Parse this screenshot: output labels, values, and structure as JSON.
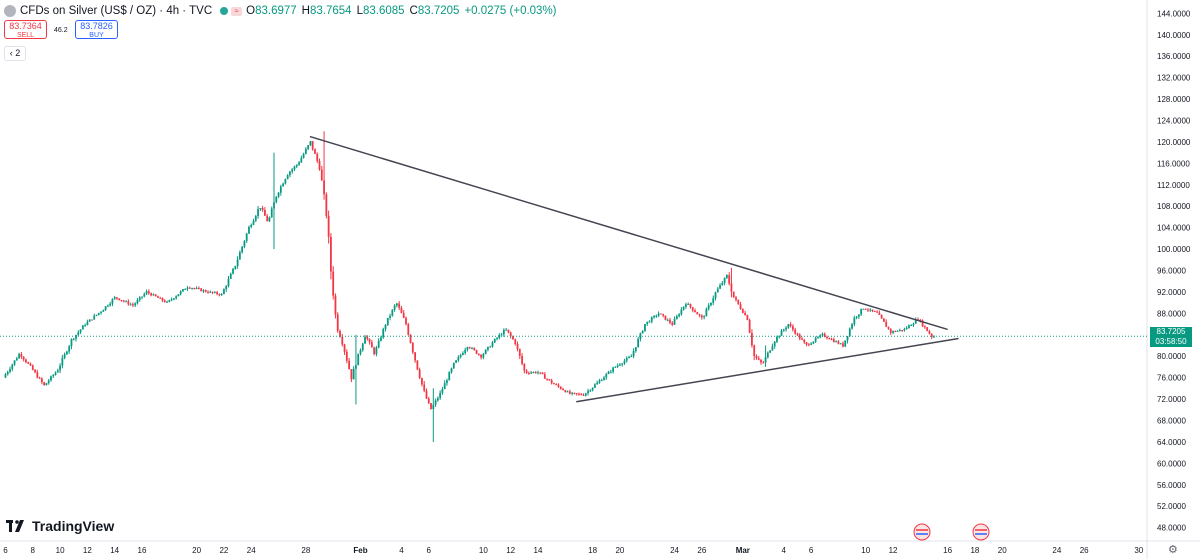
{
  "header": {
    "title": "CFDs on Silver (US$ / OZ) · 4h · TVC",
    "open_label": "O",
    "open": "83.6977",
    "high_label": "H",
    "high": "83.7654",
    "low_label": "L",
    "low": "83.6085",
    "close_label": "C",
    "close": "83.7205",
    "change": "+0.0275 (+0.03%)",
    "mini_button": "≈"
  },
  "trade": {
    "sell_price": "83.7364",
    "sell_label": "SELL",
    "buy_price": "83.7826",
    "buy_label": "BUY",
    "spread": "46.2"
  },
  "indicators_toggle": "2",
  "logo": "TradingView",
  "price_tag": {
    "price": "83.7205",
    "countdown": "03:58:50"
  },
  "colors": {
    "up": "#089981",
    "down": "#f23645",
    "trendline": "#434651",
    "axis_text": "#131722"
  },
  "chart_data": {
    "type": "candlestick",
    "title": "CFDs on Silver (US$ / OZ) · 4h · TVC",
    "y_ticks": [
      144,
      140,
      136,
      132,
      128,
      124,
      120,
      116,
      112,
      108,
      104,
      100,
      96,
      92,
      88,
      84,
      80,
      76,
      72,
      68,
      64,
      60,
      56,
      52,
      48
    ],
    "y_range": [
      45.5,
      146.5
    ],
    "x_ticks": [
      {
        "label": "6",
        "day": 6
      },
      {
        "label": "8",
        "day": 8
      },
      {
        "label": "10",
        "day": 10
      },
      {
        "label": "12",
        "day": 12
      },
      {
        "label": "14",
        "day": 14
      },
      {
        "label": "16",
        "day": 16
      },
      {
        "label": "20",
        "day": 20
      },
      {
        "label": "22",
        "day": 22
      },
      {
        "label": "24",
        "day": 24
      },
      {
        "label": "28",
        "day": 28
      },
      {
        "label": "Feb",
        "day": 32
      },
      {
        "label": "4",
        "day": 35
      },
      {
        "label": "6",
        "day": 37
      },
      {
        "label": "10",
        "day": 41
      },
      {
        "label": "12",
        "day": 43
      },
      {
        "label": "14",
        "day": 45
      },
      {
        "label": "18",
        "day": 49
      },
      {
        "label": "20",
        "day": 51
      },
      {
        "label": "24",
        "day": 55
      },
      {
        "label": "26",
        "day": 57
      },
      {
        "label": "Mar",
        "day": 60
      },
      {
        "label": "4",
        "day": 63
      },
      {
        "label": "6",
        "day": 65
      },
      {
        "label": "10",
        "day": 69
      },
      {
        "label": "12",
        "day": 71
      },
      {
        "label": "16",
        "day": 75
      },
      {
        "label": "18",
        "day": 77
      },
      {
        "label": "20",
        "day": 79
      },
      {
        "label": "24",
        "day": 83
      },
      {
        "label": "26",
        "day": 85
      },
      {
        "label": "30",
        "day": 89
      }
    ],
    "x_range": [
      5.6,
      89.6
    ],
    "waypoints": [
      [
        6.0,
        76.0
      ],
      [
        7.2,
        80.5
      ],
      [
        8.0,
        78.0
      ],
      [
        9.0,
        74.5
      ],
      [
        10.0,
        77.5
      ],
      [
        11.0,
        83.0
      ],
      [
        12.0,
        86.0
      ],
      [
        13.2,
        88.5
      ],
      [
        14.2,
        91.0
      ],
      [
        15.5,
        89.5
      ],
      [
        16.5,
        92.0
      ],
      [
        18.0,
        90.0
      ],
      [
        19.5,
        93.0
      ],
      [
        21.0,
        92.0
      ],
      [
        22.0,
        91.5
      ],
      [
        23.0,
        97.0
      ],
      [
        24.0,
        104.0
      ],
      [
        24.8,
        108.0
      ],
      [
        25.4,
        105.0
      ],
      [
        26.0,
        110.0
      ],
      [
        26.8,
        114.0
      ],
      [
        27.6,
        116.0
      ],
      [
        28.5,
        120.0
      ],
      [
        29.2,
        115.0
      ],
      [
        29.7,
        106.0
      ],
      [
        30.0,
        96.0
      ],
      [
        30.4,
        86.0
      ],
      [
        30.9,
        82.0
      ],
      [
        31.5,
        76.0
      ],
      [
        32.5,
        84.0
      ],
      [
        33.2,
        80.5
      ],
      [
        34.0,
        86.0
      ],
      [
        34.8,
        90.0
      ],
      [
        35.5,
        86.0
      ],
      [
        36.2,
        79.0
      ],
      [
        36.8,
        73.5
      ],
      [
        37.3,
        70.0
      ],
      [
        38.0,
        73.0
      ],
      [
        39.0,
        78.5
      ],
      [
        40.0,
        82.0
      ],
      [
        41.0,
        80.0
      ],
      [
        42.0,
        83.0
      ],
      [
        42.8,
        85.0
      ],
      [
        43.5,
        82.5
      ],
      [
        44.2,
        77.0
      ],
      [
        45.2,
        77.0
      ],
      [
        46.2,
        75.0
      ],
      [
        47.5,
        73.0
      ],
      [
        48.5,
        72.8
      ],
      [
        49.5,
        75.0
      ],
      [
        50.8,
        78.0
      ],
      [
        52.0,
        80.0
      ],
      [
        53.0,
        86.0
      ],
      [
        54.0,
        88.0
      ],
      [
        55.0,
        86.0
      ],
      [
        56.0,
        90.0
      ],
      [
        57.2,
        87.0
      ],
      [
        58.2,
        92.0
      ],
      [
        59.0,
        95.0
      ],
      [
        59.5,
        91.0
      ],
      [
        60.5,
        87.0
      ],
      [
        61.0,
        80.0
      ],
      [
        61.6,
        78.5
      ],
      [
        62.5,
        83.0
      ],
      [
        63.5,
        86.0
      ],
      [
        64.8,
        82.0
      ],
      [
        66.0,
        84.0
      ],
      [
        67.5,
        82.0
      ],
      [
        68.3,
        87.0
      ],
      [
        69.0,
        89.0
      ],
      [
        70.0,
        88.0
      ],
      [
        71.0,
        84.5
      ],
      [
        72.0,
        85.0
      ],
      [
        73.0,
        87.0
      ],
      [
        74.0,
        83.7
      ]
    ],
    "wick_extremes": [
      {
        "day": 29.3,
        "high": 122.0,
        "low": 114.0
      },
      {
        "day": 25.6,
        "high": 118.0,
        "low": 100.0
      },
      {
        "day": 31.6,
        "high": 84.0,
        "low": 71.0
      },
      {
        "day": 37.3,
        "high": 74.0,
        "low": 64.0
      },
      {
        "day": 59.1,
        "high": 96.5,
        "low": 91.0
      },
      {
        "day": 61.7,
        "high": 82.0,
        "low": 78.0
      }
    ],
    "trendlines": [
      {
        "name": "upper",
        "from": [
          28.3,
          121.0
        ],
        "to": [
          75.0,
          85.0
        ]
      },
      {
        "name": "lower",
        "from": [
          47.8,
          71.5
        ],
        "to": [
          75.8,
          83.3
        ]
      }
    ],
    "current_price": 83.7205
  }
}
